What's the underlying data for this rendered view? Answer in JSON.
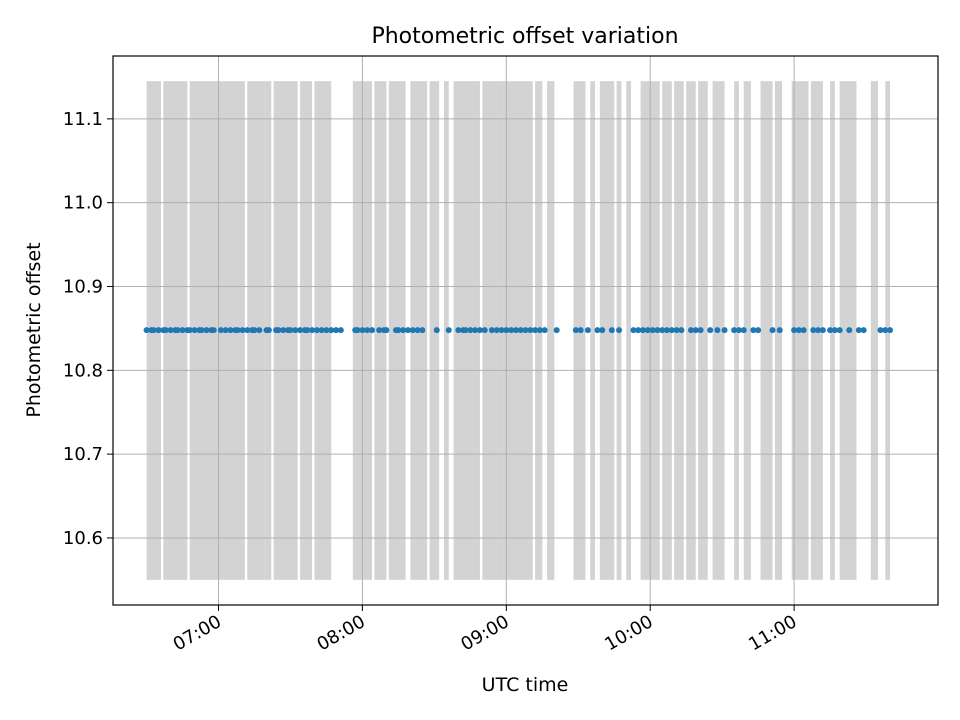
{
  "chart_data": {
    "type": "scatter",
    "title": "Photometric offset variation",
    "xlabel": "UTC time",
    "ylabel": "Photometric offset",
    "x_axis": {
      "kind": "time",
      "range": [
        "06:16",
        "12:00"
      ],
      "ticks": [
        "07:00",
        "08:00",
        "09:00",
        "10:00",
        "11:00"
      ]
    },
    "y_axis": {
      "range": [
        10.52,
        11.175
      ],
      "ticks": [
        "10.6",
        "10.7",
        "10.8",
        "10.9",
        "11.0",
        "11.1"
      ],
      "tick_values": [
        10.6,
        10.7,
        10.8,
        10.9,
        11.0,
        11.1
      ]
    },
    "grid": true,
    "points_color": "#1f77b4",
    "band_color": "#d3d3d3",
    "shaded_band_y": [
      10.55,
      11.145
    ],
    "series": [
      {
        "y_value": 10.848,
        "x": [
          "06:30",
          "06:32",
          "06:33",
          "06:35",
          "06:37",
          "06:38",
          "06:40",
          "06:42",
          "06:43",
          "06:45",
          "06:47",
          "06:48",
          "06:50",
          "06:52",
          "06:53",
          "06:55",
          "06:57",
          "06:58",
          "07:01",
          "07:03",
          "07:05",
          "07:07",
          "07:08",
          "07:10",
          "07:12",
          "07:14",
          "07:15",
          "07:17",
          "07:20",
          "07:21",
          "07:24",
          "07:25",
          "07:27",
          "07:29",
          "07:30",
          "07:32",
          "07:34",
          "07:36",
          "07:37",
          "07:39",
          "07:41",
          "07:43",
          "07:45",
          "07:47",
          "07:49",
          "07:51",
          "07:57",
          "07:58",
          "08:00",
          "08:02",
          "08:04",
          "08:07",
          "08:09",
          "08:10",
          "08:14",
          "08:15",
          "08:17",
          "08:19",
          "08:21",
          "08:23",
          "08:25",
          "08:31",
          "08:36",
          "08:40",
          "08:42",
          "08:43",
          "08:45",
          "08:47",
          "08:49",
          "08:51",
          "08:54",
          "08:56",
          "08:58",
          "09:00",
          "09:02",
          "09:04",
          "09:06",
          "09:08",
          "09:10",
          "09:12",
          "09:14",
          "09:16",
          "09:21",
          "09:29",
          "09:31",
          "09:34",
          "09:38",
          "09:40",
          "09:44",
          "09:47",
          "09:53",
          "09:55",
          "09:57",
          "09:59",
          "10:01",
          "10:03",
          "10:05",
          "10:07",
          "10:09",
          "10:11",
          "10:13",
          "10:17",
          "10:19",
          "10:21",
          "10:25",
          "10:28",
          "10:31",
          "10:35",
          "10:37",
          "10:39",
          "10:43",
          "10:45",
          "10:51",
          "10:54",
          "11:00",
          "11:02",
          "11:04",
          "11:08",
          "11:10",
          "11:12",
          "11:15",
          "11:17",
          "11:19",
          "11:23",
          "11:27",
          "11:29",
          "11:36",
          "11:38",
          "11:40"
        ]
      }
    ],
    "shaded_bands": [
      [
        "06:30",
        "06:36"
      ],
      [
        "06:37",
        "06:47"
      ],
      [
        "06:48",
        "07:00"
      ],
      [
        "07:00",
        "07:11"
      ],
      [
        "07:12",
        "07:19"
      ],
      [
        "07:19",
        "07:22"
      ],
      [
        "07:23",
        "07:33"
      ],
      [
        "07:34",
        "07:39"
      ],
      [
        "07:40",
        "07:47"
      ],
      [
        "07:56",
        "08:04"
      ],
      [
        "08:05",
        "08:10"
      ],
      [
        "08:11",
        "08:18"
      ],
      [
        "08:20",
        "08:27"
      ],
      [
        "08:28",
        "08:32"
      ],
      [
        "08:34",
        "08:36"
      ],
      [
        "08:38",
        "08:49"
      ],
      [
        "08:50",
        "08:59"
      ],
      [
        "08:59",
        "09:11"
      ],
      [
        "09:12",
        "09:15"
      ],
      [
        "09:17",
        "09:20"
      ],
      [
        "09:28",
        "09:33"
      ],
      [
        "09:35",
        "09:37"
      ],
      [
        "09:39",
        "09:45"
      ],
      [
        "09:46",
        "09:48"
      ],
      [
        "09:50",
        "09:52"
      ],
      [
        "09:56",
        "10:04"
      ],
      [
        "10:05",
        "10:09"
      ],
      [
        "10:10",
        "10:14"
      ],
      [
        "10:15",
        "10:19"
      ],
      [
        "10:20",
        "10:24"
      ],
      [
        "10:26",
        "10:31"
      ],
      [
        "10:35",
        "10:37"
      ],
      [
        "10:39",
        "10:42"
      ],
      [
        "10:46",
        "10:51"
      ],
      [
        "10:52",
        "10:55"
      ],
      [
        "10:59",
        "11:06"
      ],
      [
        "11:07",
        "11:12"
      ],
      [
        "11:15",
        "11:17"
      ],
      [
        "11:19",
        "11:26"
      ],
      [
        "11:32",
        "11:35"
      ],
      [
        "11:38",
        "11:40"
      ]
    ]
  }
}
